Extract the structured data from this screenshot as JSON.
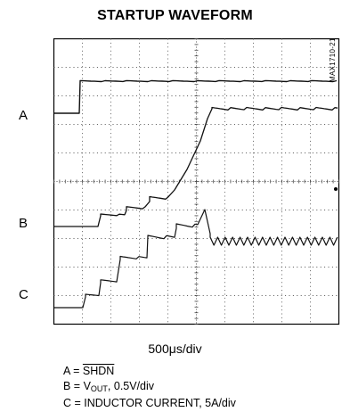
{
  "chart_data": {
    "type": "line",
    "title": "STARTUP WAVEFORM",
    "figure_code": "MAX1710-21",
    "x_scale_label": "500μs/div",
    "grid": true,
    "series": [
      {
        "name": "A",
        "values": []
      },
      {
        "name": "B",
        "values": []
      },
      {
        "name": "C",
        "values": []
      }
    ],
    "legend": [
      "A = SHDN",
      "B = VOUT, 0.5V/div",
      "C = INDUCTOR CURRENT, 5A/div"
    ]
  },
  "labels": {
    "a": "A",
    "b": "B",
    "c": "C"
  },
  "legend_parts": {
    "a_prefix": "A = ",
    "a_signal": "SHDN",
    "b_prefix": "B = V",
    "b_sub": "OUT",
    "b_suffix": ", 0.5V/div",
    "c_line": "C = INDUCTOR CURRENT, 5A/div"
  }
}
